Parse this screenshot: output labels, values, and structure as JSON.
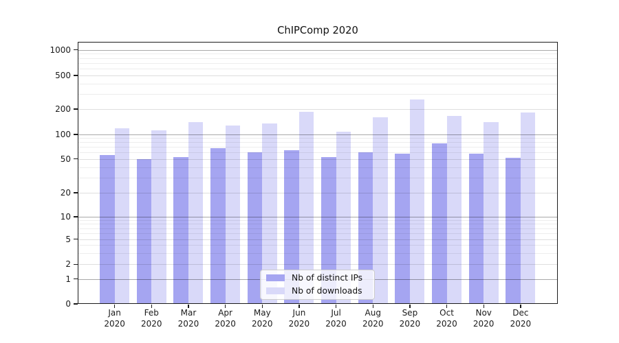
{
  "title": "ChIPComp 2020",
  "chart_data": {
    "type": "bar",
    "title": "ChIPComp 2020",
    "categories": [
      "Jan",
      "Feb",
      "Mar",
      "Apr",
      "May",
      "Jun",
      "Jul",
      "Aug",
      "Sep",
      "Oct",
      "Nov",
      "Dec"
    ],
    "year": "2020",
    "series": [
      {
        "name": "Nb of distinct IPs",
        "color": "#a5a5f1",
        "values": [
          56,
          50,
          52,
          68,
          60,
          64,
          53,
          60,
          58,
          78,
          58,
          51
        ]
      },
      {
        "name": "Nb of downloads",
        "color": "#d9d9f9",
        "values": [
          118,
          112,
          141,
          128,
          135,
          184,
          108,
          160,
          259,
          165,
          139,
          181
        ]
      }
    ],
    "yticks": [
      0,
      1,
      2,
      5,
      10,
      20,
      50,
      100,
      200,
      500,
      1000
    ],
    "yscale": "symlog",
    "ylim": [
      0,
      1200
    ],
    "grid": "both",
    "legend_position": "bottom-center",
    "xlabel": "",
    "ylabel": ""
  }
}
